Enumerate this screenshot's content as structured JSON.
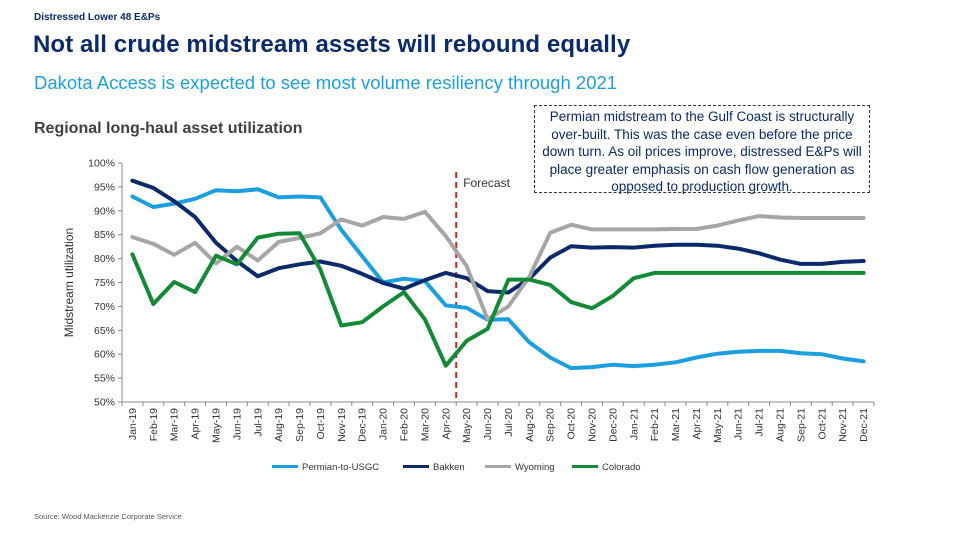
{
  "header": {
    "kicker": "Distressed Lower 48 E&Ps",
    "title": "Not all crude midstream assets will rebound equally",
    "subtitle": "Dakota Access is expected to see most volume resiliency through 2021"
  },
  "callout": {
    "text": "Permian midstream to the Gulf Coast is structurally over-built. This was the case even before the price down turn. As oil prices improve, distressed E&Ps will place greater emphasis on cash flow generation as opposed to production growth."
  },
  "source": "Source: Wood Mackenzie Corporate Service",
  "chart_data": {
    "type": "line",
    "title": "Regional long-haul asset utilization",
    "xlabel": "",
    "ylabel": "Midstream utilization",
    "ylim": [
      50,
      100
    ],
    "y_ticks": [
      "50%",
      "55%",
      "60%",
      "65%",
      "70%",
      "75%",
      "80%",
      "85%",
      "90%",
      "95%",
      "100%"
    ],
    "categories": [
      "Jan-19",
      "Feb-19",
      "Mar-19",
      "Apr-19",
      "May-19",
      "Jun-19",
      "Jul-19",
      "Aug-19",
      "Sep-19",
      "Oct-19",
      "Nov-19",
      "Dec-19",
      "Jan-20",
      "Feb-20",
      "Mar-20",
      "Apr-20",
      "May-20",
      "Jun-20",
      "Jul-20",
      "Aug-20",
      "Sep-20",
      "Oct-20",
      "Nov-20",
      "Dec-20",
      "Jan-21",
      "Feb-21",
      "Mar-21",
      "Apr-21",
      "May-21",
      "Jun-21",
      "Jul-21",
      "Aug-21",
      "Sep-21",
      "Oct-21",
      "Nov-21",
      "Dec-21"
    ],
    "forecast_label": "Forecast",
    "forecast_after_index": 15,
    "legend_position": "bottom",
    "series": [
      {
        "name": "Permian-to-USGC",
        "color": "#1b9fe0",
        "values": [
          93,
          90.8,
          91.5,
          92.5,
          94.3,
          94.1,
          94.5,
          92.8,
          93,
          92.8,
          86,
          80.5,
          75,
          75.8,
          75.3,
          70.2,
          69.7,
          67.2,
          67.3,
          62.5,
          59.3,
          57.1,
          57.3,
          57.8,
          57.5,
          57.8,
          58.3,
          59.3,
          60.1,
          60.5,
          60.7,
          60.7,
          60.2,
          60,
          59.1,
          58.5
        ]
      },
      {
        "name": "Bakken",
        "color": "#0a2a6b",
        "values": [
          96.3,
          94.8,
          92,
          88.7,
          83.3,
          79.5,
          76.3,
          78,
          78.8,
          79.4,
          78.5,
          76.8,
          74.9,
          73.7,
          75.5,
          77,
          75.9,
          73.2,
          72.9,
          75.8,
          80.2,
          82.6,
          82.3,
          82.4,
          82.3,
          82.7,
          82.9,
          82.9,
          82.7,
          82.1,
          81.1,
          79.8,
          78.9,
          78.9,
          79.3,
          79.5
        ]
      },
      {
        "name": "Wyoming",
        "color": "#a6a6a6",
        "values": [
          84.5,
          83.1,
          80.8,
          83.3,
          79,
          82.5,
          79.6,
          83.5,
          84.3,
          85.3,
          88.2,
          86.9,
          88.7,
          88.3,
          89.8,
          84.7,
          78.4,
          67.3,
          70,
          76.2,
          85.4,
          87.1,
          86.1,
          86.1,
          86.1,
          86.1,
          86.2,
          86.2,
          86.9,
          88,
          88.9,
          88.6,
          88.5,
          88.5,
          88.5,
          88.5
        ]
      },
      {
        "name": "Colorado",
        "color": "#138a36",
        "values": [
          80.9,
          70.5,
          75.1,
          73,
          80.6,
          78.8,
          84.4,
          85.2,
          85.3,
          77.7,
          66,
          66.7,
          70,
          73,
          67.3,
          57.6,
          62.8,
          65.3,
          75.6,
          75.6,
          74.5,
          70.9,
          69.6,
          72.2,
          75.9,
          77,
          77,
          77,
          77,
          77,
          77,
          77,
          77,
          77,
          77,
          77
        ]
      }
    ]
  }
}
